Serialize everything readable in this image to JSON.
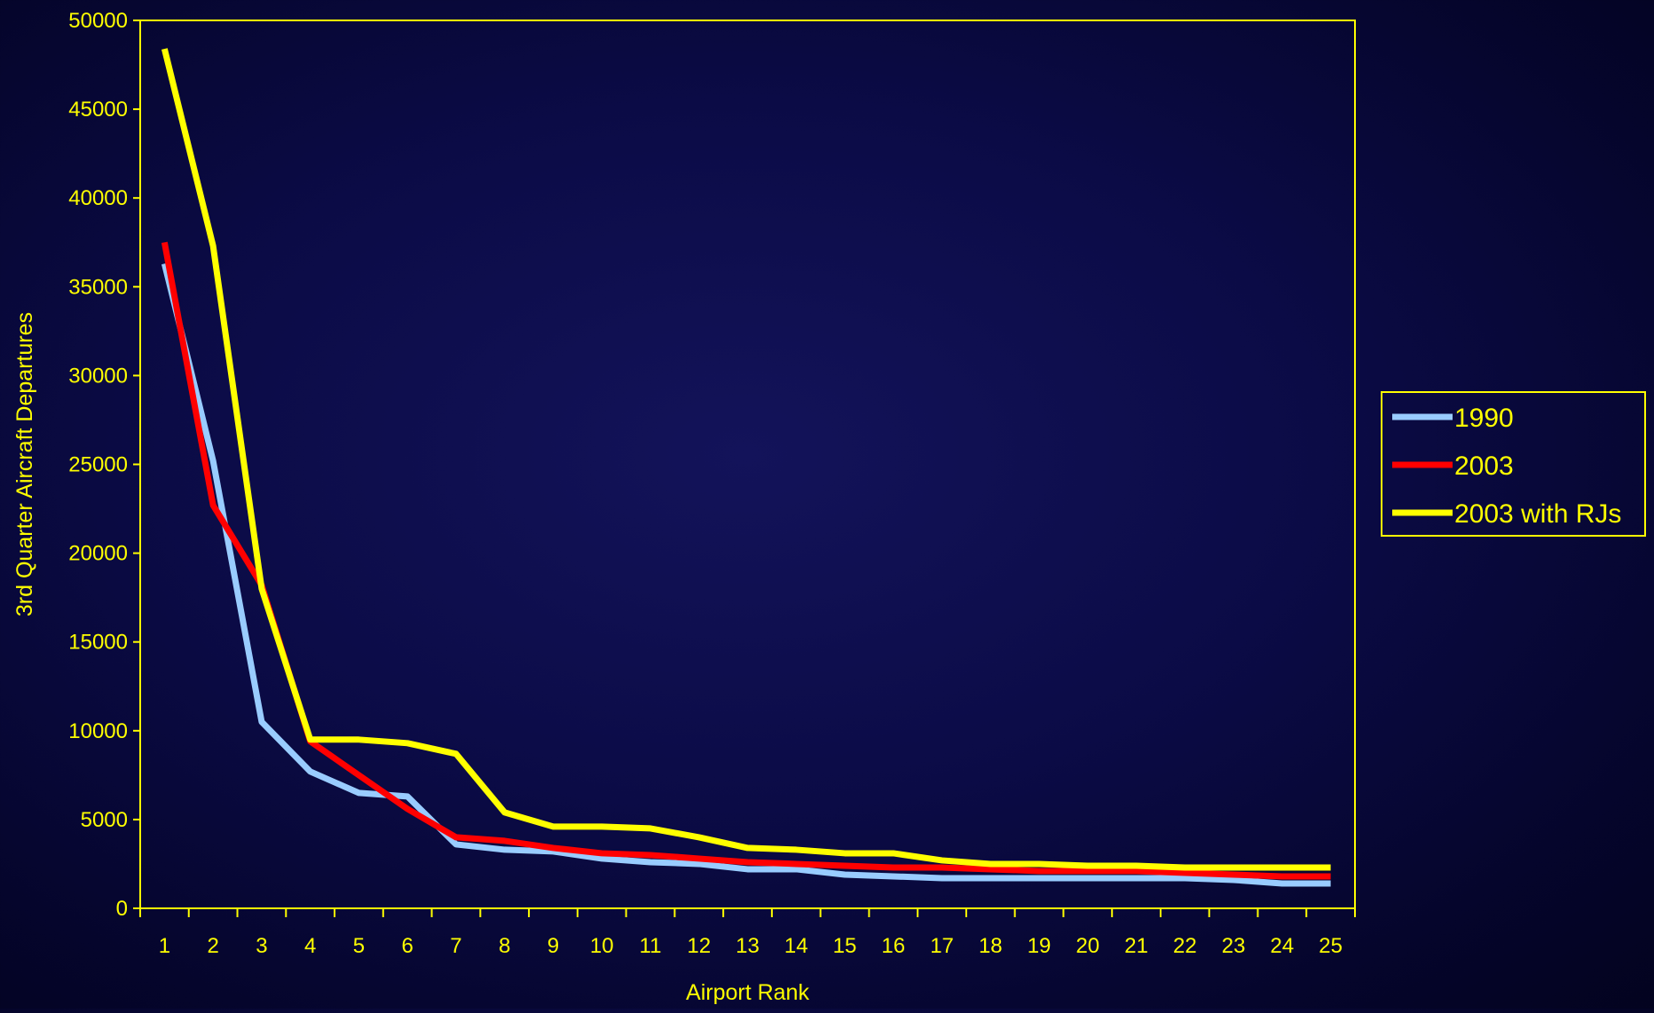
{
  "chart_data": {
    "type": "line",
    "xlabel": "Airport Rank",
    "ylabel": "3rd Quarter Aircraft Departures",
    "x": [
      1,
      2,
      3,
      4,
      5,
      6,
      7,
      8,
      9,
      10,
      11,
      12,
      13,
      14,
      15,
      16,
      17,
      18,
      19,
      20,
      21,
      22,
      23,
      24,
      25
    ],
    "xlim": [
      0.5,
      25.5
    ],
    "ylim": [
      0,
      50000
    ],
    "yticks": [
      0,
      5000,
      10000,
      15000,
      20000,
      25000,
      30000,
      35000,
      40000,
      45000,
      50000
    ],
    "grid": false,
    "legend_position": "right",
    "series": [
      {
        "name": "1990",
        "color": "#99ccff",
        "values": [
          36300,
          25200,
          10500,
          7700,
          6500,
          6300,
          3600,
          3300,
          3200,
          2800,
          2600,
          2500,
          2200,
          2200,
          1900,
          1800,
          1700,
          1700,
          1700,
          1700,
          1700,
          1700,
          1600,
          1400,
          1400
        ]
      },
      {
        "name": "2003",
        "color": "#ff0000",
        "values": [
          37500,
          22700,
          18200,
          9400,
          7500,
          5600,
          4000,
          3800,
          3400,
          3100,
          3000,
          2800,
          2600,
          2500,
          2400,
          2300,
          2300,
          2200,
          2100,
          2100,
          2100,
          2000,
          1900,
          1800,
          1800
        ]
      },
      {
        "name": "2003 with RJs",
        "color": "#ffff00",
        "values": [
          48400,
          37300,
          18000,
          9500,
          9500,
          9300,
          8700,
          5400,
          4600,
          4600,
          4500,
          4000,
          3400,
          3300,
          3100,
          3100,
          2700,
          2500,
          2500,
          2400,
          2400,
          2300,
          2300,
          2300,
          2300
        ]
      }
    ]
  },
  "colors": {
    "axis": "#ffff00",
    "background": "#0b0b46"
  }
}
